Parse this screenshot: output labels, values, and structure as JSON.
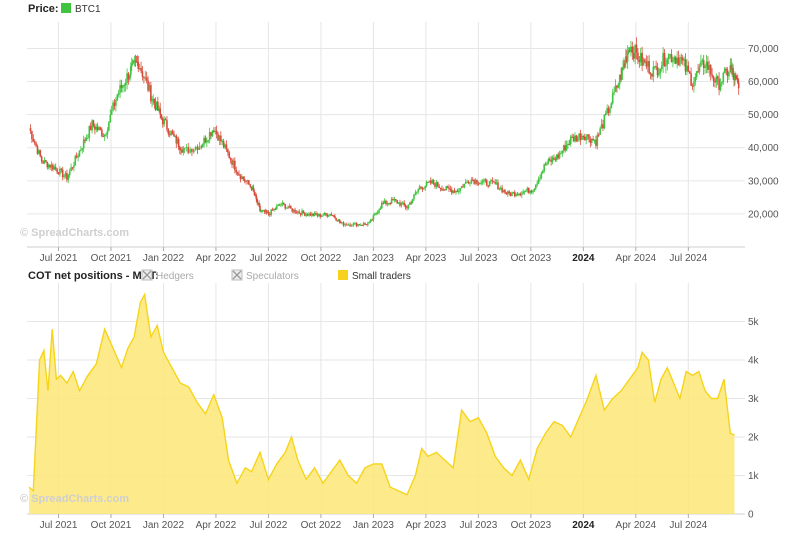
{
  "watermark": "© SpreadCharts.com",
  "colors": {
    "up": "#3ec43e",
    "down": "#d84a3a",
    "area_fill": "#fde777",
    "area_line": "#f5d41a",
    "grid": "#e6e6e6"
  },
  "price_panel": {
    "title": "Price:",
    "legend": {
      "name": "BTC1",
      "color": "#3ec43e"
    }
  },
  "cot_panel": {
    "title": "COT net positions - MBT:",
    "legend": [
      {
        "name": "Hedgers",
        "enabled": false
      },
      {
        "name": "Speculators",
        "enabled": false
      },
      {
        "name": "Small traders",
        "enabled": true,
        "color": "#f7d11c"
      }
    ]
  },
  "x_axis_ticks": [
    {
      "label": "Jul 2021",
      "t": 2021.5,
      "bold": false
    },
    {
      "label": "Oct 2021",
      "t": 2021.75,
      "bold": false
    },
    {
      "label": "Jan 2022",
      "t": 2022.0,
      "bold": false
    },
    {
      "label": "Apr 2022",
      "t": 2022.25,
      "bold": false
    },
    {
      "label": "Jul 2022",
      "t": 2022.5,
      "bold": false
    },
    {
      "label": "Oct 2022",
      "t": 2022.75,
      "bold": false
    },
    {
      "label": "Jan 2023",
      "t": 2023.0,
      "bold": false
    },
    {
      "label": "Apr 2023",
      "t": 2023.25,
      "bold": false
    },
    {
      "label": "Jul 2023",
      "t": 2023.5,
      "bold": false
    },
    {
      "label": "Oct 2023",
      "t": 2023.75,
      "bold": false
    },
    {
      "label": "2024",
      "t": 2024.0,
      "bold": true
    },
    {
      "label": "Apr 2024",
      "t": 2024.25,
      "bold": false
    },
    {
      "label": "Jul 2024",
      "t": 2024.5,
      "bold": false
    }
  ],
  "chart_data": [
    {
      "type": "candlestick",
      "title": "Price: BTC1",
      "x_range": [
        2021.35,
        2024.77
      ],
      "ylim": [
        10000,
        78000
      ],
      "y_ticks": [
        20000,
        30000,
        40000,
        50000,
        60000,
        70000
      ],
      "y_tick_labels": [
        "20,000",
        "30,000",
        "40,000",
        "50,000",
        "60,000",
        "70,000"
      ],
      "grid": true,
      "series": [
        {
          "name": "BTC1",
          "points": [
            [
              2021.36,
              46000
            ],
            [
              2021.42,
              36000
            ],
            [
              2021.48,
              34000
            ],
            [
              2021.54,
              31000
            ],
            [
              2021.6,
              39000
            ],
            [
              2021.66,
              47000
            ],
            [
              2021.72,
              44000
            ],
            [
              2021.78,
              56000
            ],
            [
              2021.84,
              63000
            ],
            [
              2021.88,
              66000
            ],
            [
              2021.94,
              56000
            ],
            [
              2021.99,
              49000
            ],
            [
              2022.05,
              43000
            ],
            [
              2022.1,
              39000
            ],
            [
              2022.18,
              41000
            ],
            [
              2022.24,
              46000
            ],
            [
              2022.3,
              39000
            ],
            [
              2022.36,
              32000
            ],
            [
              2022.42,
              28000
            ],
            [
              2022.46,
              21000
            ],
            [
              2022.5,
              20000
            ],
            [
              2022.56,
              23000
            ],
            [
              2022.62,
              21000
            ],
            [
              2022.68,
              20000
            ],
            [
              2022.74,
              19500
            ],
            [
              2022.8,
              20000
            ],
            [
              2022.85,
              17000
            ],
            [
              2022.92,
              16800
            ],
            [
              2022.98,
              17000
            ],
            [
              2023.04,
              23000
            ],
            [
              2023.1,
              24000
            ],
            [
              2023.16,
              22000
            ],
            [
              2023.22,
              28000
            ],
            [
              2023.28,
              29500
            ],
            [
              2023.34,
              27500
            ],
            [
              2023.4,
              27000
            ],
            [
              2023.46,
              30500
            ],
            [
              2023.52,
              29500
            ],
            [
              2023.58,
              29000
            ],
            [
              2023.64,
              26000
            ],
            [
              2023.7,
              26500
            ],
            [
              2023.76,
              27500
            ],
            [
              2023.82,
              35000
            ],
            [
              2023.88,
              37500
            ],
            [
              2023.94,
              42500
            ],
            [
              2024.0,
              44000
            ],
            [
              2024.06,
              42000
            ],
            [
              2024.12,
              51500
            ],
            [
              2024.18,
              62000
            ],
            [
              2024.22,
              71000
            ],
            [
              2024.28,
              66000
            ],
            [
              2024.34,
              63000
            ],
            [
              2024.4,
              68000
            ],
            [
              2024.46,
              67000
            ],
            [
              2024.52,
              60000
            ],
            [
              2024.58,
              66000
            ],
            [
              2024.64,
              59000
            ],
            [
              2024.7,
              64000
            ],
            [
              2024.74,
              58000
            ]
          ]
        }
      ]
    },
    {
      "type": "area",
      "title": "COT net positions - MBT: Small traders",
      "x_range": [
        2021.35,
        2024.77
      ],
      "ylim": [
        0,
        6000
      ],
      "y_ticks": [
        0,
        1000,
        2000,
        3000,
        4000,
        5000
      ],
      "y_tick_labels": [
        "0",
        "1k",
        "2k",
        "3k",
        "4k",
        "5k"
      ],
      "grid": true,
      "series": [
        {
          "name": "Small traders",
          "points": [
            [
              2021.36,
              700
            ],
            [
              2021.38,
              600
            ],
            [
              2021.41,
              4000
            ],
            [
              2021.43,
              4250
            ],
            [
              2021.45,
              3200
            ],
            [
              2021.47,
              4800
            ],
            [
              2021.49,
              3500
            ],
            [
              2021.51,
              3600
            ],
            [
              2021.54,
              3400
            ],
            [
              2021.57,
              3700
            ],
            [
              2021.6,
              3200
            ],
            [
              2021.64,
              3600
            ],
            [
              2021.68,
              3900
            ],
            [
              2021.72,
              4800
            ],
            [
              2021.76,
              4300
            ],
            [
              2021.8,
              3800
            ],
            [
              2021.83,
              4300
            ],
            [
              2021.86,
              4600
            ],
            [
              2021.89,
              5500
            ],
            [
              2021.91,
              5700
            ],
            [
              2021.94,
              4600
            ],
            [
              2021.97,
              4900
            ],
            [
              2022.0,
              4200
            ],
            [
              2022.04,
              3800
            ],
            [
              2022.08,
              3400
            ],
            [
              2022.12,
              3300
            ],
            [
              2022.16,
              2900
            ],
            [
              2022.2,
              2600
            ],
            [
              2022.24,
              3100
            ],
            [
              2022.28,
              2500
            ],
            [
              2022.31,
              1400
            ],
            [
              2022.35,
              800
            ],
            [
              2022.39,
              1200
            ],
            [
              2022.42,
              1100
            ],
            [
              2022.46,
              1600
            ],
            [
              2022.5,
              900
            ],
            [
              2022.54,
              1300
            ],
            [
              2022.58,
              1600
            ],
            [
              2022.61,
              2000
            ],
            [
              2022.64,
              1400
            ],
            [
              2022.68,
              900
            ],
            [
              2022.72,
              1200
            ],
            [
              2022.76,
              800
            ],
            [
              2022.8,
              1100
            ],
            [
              2022.84,
              1400
            ],
            [
              2022.88,
              1000
            ],
            [
              2022.92,
              800
            ],
            [
              2022.96,
              1200
            ],
            [
              2023.0,
              1300
            ],
            [
              2023.04,
              1300
            ],
            [
              2023.08,
              700
            ],
            [
              2023.12,
              600
            ],
            [
              2023.16,
              500
            ],
            [
              2023.2,
              1000
            ],
            [
              2023.23,
              1700
            ],
            [
              2023.26,
              1500
            ],
            [
              2023.3,
              1600
            ],
            [
              2023.34,
              1400
            ],
            [
              2023.38,
              1200
            ],
            [
              2023.42,
              2700
            ],
            [
              2023.46,
              2400
            ],
            [
              2023.5,
              2500
            ],
            [
              2023.54,
              2100
            ],
            [
              2023.58,
              1500
            ],
            [
              2023.62,
              1200
            ],
            [
              2023.66,
              1000
            ],
            [
              2023.7,
              1400
            ],
            [
              2023.74,
              900
            ],
            [
              2023.78,
              1700
            ],
            [
              2023.82,
              2100
            ],
            [
              2023.86,
              2400
            ],
            [
              2023.9,
              2300
            ],
            [
              2023.94,
              2000
            ],
            [
              2023.98,
              2500
            ],
            [
              2024.02,
              3000
            ],
            [
              2024.06,
              3600
            ],
            [
              2024.1,
              2700
            ],
            [
              2024.14,
              3000
            ],
            [
              2024.18,
              3200
            ],
            [
              2024.22,
              3500
            ],
            [
              2024.26,
              3800
            ],
            [
              2024.28,
              4200
            ],
            [
              2024.31,
              4000
            ],
            [
              2024.34,
              2900
            ],
            [
              2024.37,
              3500
            ],
            [
              2024.4,
              3800
            ],
            [
              2024.43,
              3400
            ],
            [
              2024.46,
              3000
            ],
            [
              2024.49,
              3700
            ],
            [
              2024.52,
              3600
            ],
            [
              2024.55,
              3700
            ],
            [
              2024.58,
              3200
            ],
            [
              2024.61,
              3000
            ],
            [
              2024.64,
              3000
            ],
            [
              2024.67,
              3500
            ],
            [
              2024.7,
              2100
            ],
            [
              2024.72,
              2050
            ]
          ]
        }
      ]
    }
  ]
}
